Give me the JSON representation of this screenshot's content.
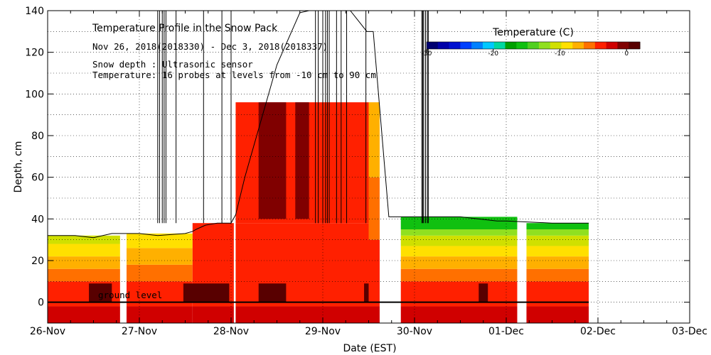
{
  "chart_data": {
    "type": "heatmap",
    "title": "Temperature Profile in the Snow Pack",
    "date_range": "Nov 26, 2018(2018330) - Dec  3, 2018(2018337)",
    "notes": [
      "Snow depth : Ultrasonic sensor",
      "Temperature: 16 probes at levels from -10 cm to 90 cm"
    ],
    "xlabel": "Date (EST)",
    "ylabel": "Depth, cm",
    "xlim": [
      0,
      7
    ],
    "ylim": [
      -10,
      140
    ],
    "x_ticks": [
      "26-Nov",
      "27-Nov",
      "28-Nov",
      "29-Nov",
      "30-Nov",
      "01-Dec",
      "02-Dec",
      "03-Dec"
    ],
    "y_ticks": [
      0,
      20,
      40,
      60,
      80,
      100,
      120,
      140
    ],
    "ground_label": "ground level",
    "grid": true,
    "colorbar": {
      "title": "Temperature (C)",
      "range": [
        -30,
        2
      ],
      "ticks": [
        -30,
        -20,
        -10,
        0
      ],
      "colors": [
        "#000070",
        "#0000a8",
        "#0010d0",
        "#0040ff",
        "#0080ff",
        "#00c8ff",
        "#00d8a0",
        "#00a000",
        "#10c010",
        "#50d020",
        "#90e020",
        "#d0e000",
        "#ffe000",
        "#ffb000",
        "#ff7000",
        "#ff2000",
        "#d00000",
        "#800000",
        "#580000"
      ]
    },
    "snow_depth": {
      "x": [
        0,
        0.3,
        0.5,
        0.7,
        1.0,
        1.2,
        1.5,
        1.58,
        1.62,
        1.72,
        1.85,
        2.0,
        2.05,
        2.15,
        2.5,
        2.75,
        2.85,
        3.0,
        3.3,
        3.48,
        3.55,
        3.72,
        4.0,
        4.2,
        4.5,
        4.7,
        4.9,
        5.0,
        5.5,
        5.9
      ],
      "y": [
        32,
        32,
        31,
        33,
        33,
        32,
        33,
        34,
        35,
        37,
        38,
        38,
        42,
        60,
        114,
        139,
        150,
        150,
        140,
        130,
        130,
        41,
        41,
        41,
        41,
        40,
        39,
        39,
        38,
        38
      ]
    },
    "regions": [
      {
        "x0": 0,
        "x1": 0.79,
        "y0": -10,
        "y1": 32,
        "cmap": "warm_cold_top"
      },
      {
        "x0": 0.86,
        "x1": 1.58,
        "y0": -10,
        "y1": 33,
        "cmap": "warm"
      },
      {
        "x0": 1.58,
        "x1": 2.03,
        "y0": -10,
        "y1": 38,
        "cmap": "hot"
      },
      {
        "x0": 2.05,
        "x1": 3.5,
        "y0": -10,
        "y1": 96,
        "cmap": "hot_tall"
      },
      {
        "x0": 3.5,
        "x1": 3.62,
        "y0": -10,
        "y1": 96,
        "cmap": "tall_warm"
      },
      {
        "x0": 3.85,
        "x1": 5.12,
        "y0": -10,
        "y1": 41,
        "cmap": "cold_top"
      },
      {
        "x0": 5.22,
        "x1": 5.9,
        "y0": -10,
        "y1": 38,
        "cmap": "cold_top"
      }
    ],
    "sensor_spikes_x": [
      1.2,
      1.22,
      1.25,
      1.27,
      1.29,
      1.4,
      1.7,
      1.9,
      2.0,
      2.92,
      2.95,
      3.0,
      3.03,
      3.05,
      3.07,
      3.15,
      3.2,
      3.26,
      3.47,
      4.08,
      4.09,
      4.1,
      4.12,
      4.14,
      4.15
    ]
  }
}
